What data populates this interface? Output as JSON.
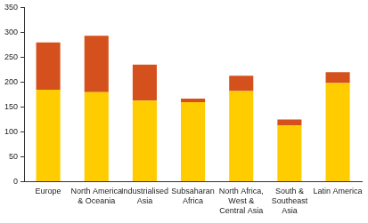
{
  "chart_data": {
    "type": "bar",
    "stacked": true,
    "grid": false,
    "categories": [
      "Europe",
      "North America & Oceania",
      "Industrialised Asia",
      "Subsaharan Africa",
      "North Africa, West & Central Asia",
      "South & Southeast Asia",
      "Latin America"
    ],
    "series": [
      {
        "color": "#ffcc00",
        "values": [
          185,
          180,
          163,
          160,
          182,
          113,
          198
        ]
      },
      {
        "color": "#d4511e",
        "values": [
          95,
          113,
          72,
          7,
          31,
          12,
          22
        ]
      }
    ],
    "ylim": [
      0,
      350
    ],
    "yticks": [
      0,
      50,
      100,
      150,
      200,
      250,
      300,
      350
    ]
  }
}
